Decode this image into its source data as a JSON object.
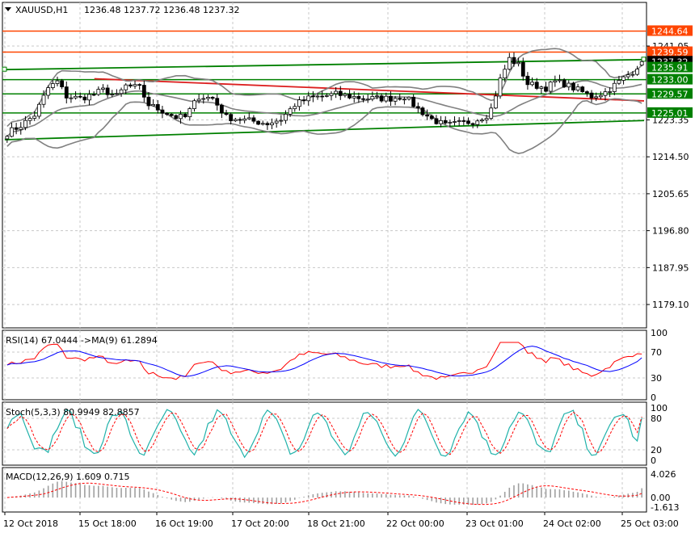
{
  "header": {
    "symbol": "XAUUSD,H1",
    "ohlc": "1236.48 1237.72 1236.48 1237.32"
  },
  "colors": {
    "candle": "#000000",
    "bollinger": "#808080",
    "green_line": "#008000",
    "red_line": "#dc1e1e",
    "orange_line": "#ff4500",
    "rsi": "#ff0000",
    "rsi_ma": "#0000ff",
    "stoch_main": "#20b2aa",
    "stoch_signal": "#ff0000",
    "macd_hist": "#a0a0a0",
    "macd_signal": "#ff0000"
  },
  "chart_data": [
    {
      "type": "candlestick",
      "symbol": "XAUUSD",
      "timeframe": "H1",
      "ylim": [
        1173.5,
        1251.5
      ],
      "y_ticks": [
        "1241.05",
        "1223.35",
        "1214.50",
        "1205.65",
        "1196.80",
        "1187.95",
        "1179.10"
      ],
      "x_ticks": [
        "12 Oct 2018",
        "15 Oct 18:00",
        "16 Oct 19:00",
        "17 Oct 20:00",
        "18 Oct 21:00",
        "22 Oct 00:00",
        "23 Oct 01:00",
        "24 Oct 02:00",
        "25 Oct 03:00"
      ],
      "price_labels": [
        {
          "value": "1244.64",
          "level": 1244.64,
          "style": "orange"
        },
        {
          "value": "1239.59",
          "level": 1239.59,
          "style": "orange"
        },
        {
          "value": "1237.32",
          "level": 1237.32,
          "style": "black"
        },
        {
          "value": "1235.91",
          "level": 1235.91,
          "style": "green"
        },
        {
          "value": "1233.00",
          "level": 1233.0,
          "style": "green"
        },
        {
          "value": "1229.57",
          "level": 1229.57,
          "style": "green"
        },
        {
          "value": "1225.01",
          "level": 1225.01,
          "style": "green"
        }
      ],
      "horizontal_levels": [
        {
          "level": 1244.64,
          "color": "orange"
        },
        {
          "level": 1239.59,
          "color": "orange"
        },
        {
          "level": 1233.0,
          "color": "green"
        },
        {
          "level": 1229.57,
          "color": "green"
        },
        {
          "level": 1225.01,
          "color": "green"
        }
      ],
      "trend_lines": [
        {
          "color": "green",
          "from": [
            0,
            1235.4
          ],
          "to": [
            1,
            1237.8
          ]
        },
        {
          "color": "green",
          "from": [
            0,
            1218.6
          ],
          "to": [
            1,
            1223.2
          ]
        },
        {
          "color": "red",
          "from": [
            0.14,
            1233.2
          ],
          "to": [
            1,
            1227.9
          ]
        }
      ],
      "bollinger_bands": true,
      "close_anchors": [
        [
          0,
          1220.2
        ],
        [
          3,
          1222.0
        ],
        [
          6,
          1224.5
        ],
        [
          9,
          1231.0
        ],
        [
          11,
          1232.5
        ],
        [
          13,
          1229.0
        ],
        [
          16,
          1228.5
        ],
        [
          19,
          1229.5
        ],
        [
          21,
          1230.5
        ],
        [
          24,
          1229.0
        ],
        [
          26,
          1231.5
        ],
        [
          29,
          1231.0
        ],
        [
          31,
          1227.0
        ],
        [
          34,
          1225.5
        ],
        [
          37,
          1224.0
        ],
        [
          39,
          1224.0
        ],
        [
          42,
          1229.0
        ],
        [
          45,
          1228.5
        ],
        [
          48,
          1224.0
        ],
        [
          51,
          1223.5
        ],
        [
          54,
          1223.0
        ],
        [
          57,
          1222.5
        ],
        [
          60,
          1223.5
        ],
        [
          63,
          1227.0
        ],
        [
          66,
          1228.5
        ],
        [
          69,
          1229.0
        ],
        [
          72,
          1229.5
        ],
        [
          75,
          1229.0
        ],
        [
          78,
          1228.5
        ],
        [
          81,
          1228.5
        ],
        [
          84,
          1228.5
        ],
        [
          87,
          1229.0
        ],
        [
          90,
          1226.0
        ],
        [
          93,
          1223.5
        ],
        [
          96,
          1222.0
        ],
        [
          99,
          1222.5
        ],
        [
          102,
          1223.0
        ],
        [
          105,
          1224.5
        ],
        [
          106,
          1226.0
        ],
        [
          108,
          1233.0
        ],
        [
          110,
          1238.0
        ],
        [
          112,
          1236.5
        ],
        [
          114,
          1232.0
        ],
        [
          116,
          1231.5
        ],
        [
          118,
          1231.0
        ],
        [
          120,
          1232.5
        ],
        [
          122,
          1232.0
        ],
        [
          125,
          1230.5
        ],
        [
          128,
          1229.0
        ],
        [
          131,
          1230.0
        ],
        [
          134,
          1232.5
        ],
        [
          137,
          1235.0
        ],
        [
          139,
          1237.3
        ]
      ]
    },
    {
      "type": "line",
      "label": "RSI(14) 67.0444  ->MA(9) 61.2894",
      "ylim": [
        0,
        100
      ],
      "levels": [
        70,
        30
      ],
      "y_ticks": [
        "100",
        "70",
        "30",
        "0"
      ],
      "series": [
        {
          "name": "RSI(14)",
          "value": 67.0444
        },
        {
          "name": "MA(9)",
          "value": 61.2894
        }
      ]
    },
    {
      "type": "line",
      "label": "Stoch(5,3,3) 80.9949 82.8857",
      "ylim": [
        0,
        100
      ],
      "levels": [
        80,
        20
      ],
      "y_ticks": [
        "100",
        "80",
        "20",
        "0"
      ],
      "series": [
        {
          "name": "Main",
          "value": 80.9949
        },
        {
          "name": "Signal",
          "value": 82.8857
        }
      ]
    },
    {
      "type": "bar",
      "label": "MACD(12,26,9) 1.609 0.715",
      "ylim": [
        -2.2,
        4.6
      ],
      "y_ticks": [
        "4.026",
        "0.00",
        "-1.613"
      ],
      "series": [
        {
          "name": "MACD",
          "value": 1.609
        },
        {
          "name": "Signal",
          "value": 0.715
        }
      ]
    }
  ]
}
